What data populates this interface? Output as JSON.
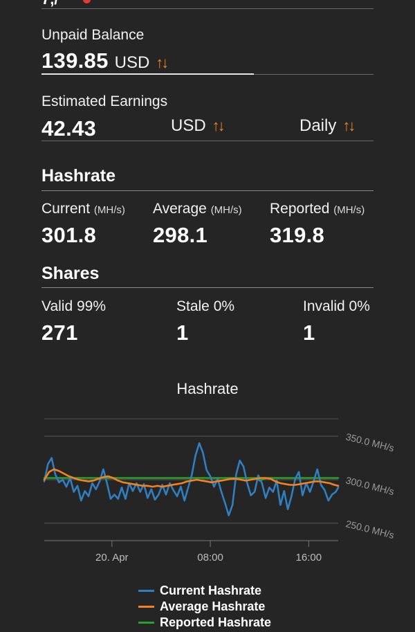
{
  "top_stub": "7,/",
  "unpaid": {
    "label": "Unpaid Balance",
    "value": "139.85",
    "currency": "USD",
    "toggle_icon": "swap-vertical-icon"
  },
  "estimated": {
    "label": "Estimated Earnings",
    "value": "42.43",
    "currency": "USD",
    "period": "Daily"
  },
  "hashrate": {
    "title": "Hashrate",
    "current": {
      "label": "Current",
      "unit": "(MH/s)",
      "value": "301.8"
    },
    "average": {
      "label": "Average",
      "unit": "(MH/s)",
      "value": "298.1"
    },
    "reported": {
      "label": "Reported",
      "unit": "(MH/s)",
      "value": "319.8"
    }
  },
  "shares": {
    "title": "Shares",
    "valid": {
      "label": "Valid 99%",
      "value": "271"
    },
    "stale": {
      "label": "Stale 0%",
      "value": "1"
    },
    "invalid": {
      "label": "Invalid 0%",
      "value": "1"
    }
  },
  "colors": {
    "accent": "#f5821f",
    "current": "#2f7fc1",
    "average": "#f5821f",
    "reported": "#2ca02c",
    "alert": "#e53935"
  },
  "chart_data": {
    "type": "line",
    "title": "Hashrate",
    "ylim": [
      230,
      370
    ],
    "x_ticks": [
      "20. Apr",
      "08:00",
      "16:00"
    ],
    "x_tick_hours": [
      0,
      8,
      16
    ],
    "x_range_hours": [
      -5.5,
      18.4
    ],
    "y_ticks": [
      250,
      300,
      350
    ],
    "y_tick_labels": [
      "250.0 MH/s",
      "300.0 MH/s",
      "350.0 MH/s"
    ],
    "legend_position": "bottom",
    "series": [
      {
        "name": "Current Hashrate",
        "color": "#2f7fc1",
        "x": [
          -5.5,
          -5.2,
          -4.9,
          -4.6,
          -4.3,
          -4.0,
          -3.7,
          -3.4,
          -3.1,
          -2.8,
          -2.5,
          -2.2,
          -1.9,
          -1.6,
          -1.3,
          -1.0,
          -0.7,
          -0.4,
          -0.1,
          0.2,
          0.5,
          0.8,
          1.1,
          1.4,
          1.7,
          2.0,
          2.3,
          2.6,
          2.9,
          3.2,
          3.5,
          3.8,
          4.1,
          4.4,
          4.7,
          5.0,
          5.3,
          5.6,
          5.9,
          6.2,
          6.5,
          6.8,
          7.1,
          7.4,
          7.7,
          8.0,
          8.3,
          8.6,
          8.9,
          9.2,
          9.5,
          9.8,
          10.1,
          10.4,
          10.7,
          11.0,
          11.3,
          11.6,
          11.9,
          12.2,
          12.5,
          12.8,
          13.1,
          13.4,
          13.7,
          14.0,
          14.3,
          14.6,
          14.9,
          15.2,
          15.5,
          15.8,
          16.1,
          16.4,
          16.7,
          17.0,
          17.3,
          17.6,
          17.9,
          18.2,
          18.4
        ],
        "values": [
          298,
          318,
          325,
          306,
          297,
          300,
          292,
          302,
          286,
          293,
          276,
          287,
          281,
          296,
          289,
          298,
          312,
          296,
          278,
          283,
          278,
          291,
          278,
          296,
          287,
          296,
          286,
          295,
          279,
          289,
          277,
          283,
          294,
          283,
          296,
          288,
          281,
          292,
          276,
          291,
          306,
          328,
          342,
          331,
          311,
          304,
          292,
          301,
          286,
          273,
          259,
          271,
          306,
          322,
          315,
          296,
          282,
          286,
          305,
          296,
          279,
          291,
          286,
          299,
          271,
          287,
          266,
          281,
          301,
          309,
          282,
          296,
          286,
          298,
          312,
          294,
          288,
          276,
          283,
          286,
          291
        ]
      },
      {
        "name": "Average Hashrate",
        "color": "#f5821f",
        "x": [
          -5.5,
          -5.1,
          -4.7,
          -4.3,
          -3.9,
          -3.5,
          -3.1,
          -2.7,
          -2.3,
          -1.9,
          -1.5,
          -1.1,
          -0.7,
          -0.3,
          0.1,
          0.5,
          0.9,
          1.3,
          1.7,
          2.1,
          2.5,
          2.9,
          3.3,
          3.7,
          4.1,
          4.5,
          4.9,
          5.3,
          5.7,
          6.1,
          6.5,
          6.9,
          7.3,
          7.7,
          8.1,
          8.5,
          8.9,
          9.3,
          9.7,
          10.1,
          10.5,
          10.9,
          11.3,
          11.7,
          12.1,
          12.5,
          12.9,
          13.3,
          13.7,
          14.1,
          14.5,
          14.9,
          15.3,
          15.7,
          16.1,
          16.5,
          16.9,
          17.3,
          17.7,
          18.1,
          18.4
        ],
        "values": [
          300,
          309,
          312,
          310,
          307,
          304,
          302,
          300,
          299,
          298,
          299,
          301,
          303,
          304,
          302,
          299,
          297,
          296,
          295,
          294,
          293,
          293,
          292,
          293,
          292,
          293,
          294,
          295,
          296,
          298,
          299,
          300,
          299,
          298,
          297,
          298,
          299,
          300,
          301,
          301,
          300,
          299,
          300,
          301,
          302,
          302,
          301,
          298,
          296,
          295,
          294,
          294,
          295,
          296,
          297,
          298,
          298,
          297,
          296,
          294,
          293
        ]
      },
      {
        "name": "Reported Hashrate",
        "color": "#2ca02c",
        "x": [
          -5.5,
          11.8,
          12.0,
          12.4,
          12.6,
          18.4
        ],
        "values": [
          302,
          302,
          299,
          301,
          302,
          302
        ]
      }
    ]
  }
}
